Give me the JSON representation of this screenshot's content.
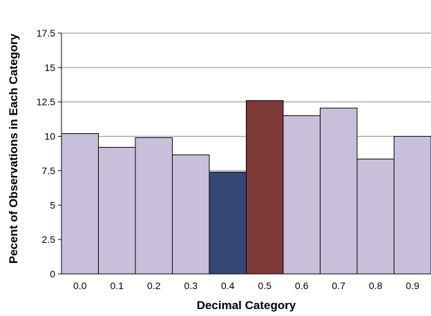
{
  "chart_data": {
    "type": "bar",
    "title": "",
    "xlabel": "Decimal Category",
    "ylabel": "Pecent of Observations in Each Category",
    "categories": [
      "0.0",
      "0.1",
      "0.2",
      "0.3",
      "0.4",
      "0.5",
      "0.6",
      "0.7",
      "0.8",
      "0.9"
    ],
    "values": [
      10.2,
      9.2,
      9.9,
      8.65,
      7.4,
      12.6,
      11.5,
      12.05,
      8.35,
      10.0
    ],
    "bar_colors": [
      "#c8c0da",
      "#c8c0da",
      "#c8c0da",
      "#c8c0da",
      "#344877",
      "#7e3a37",
      "#c8c0da",
      "#c8c0da",
      "#c8c0da",
      "#c8c0da"
    ],
    "ylim": [
      0,
      17.5
    ],
    "yticks": [
      0,
      2.5,
      5,
      7.5,
      10,
      12.5,
      15,
      17.5
    ],
    "ytick_labels": [
      "0",
      "2.5",
      "5",
      "7.5",
      "10",
      "12.5",
      "15",
      "17.5"
    ],
    "grid": true,
    "legend": "none"
  }
}
